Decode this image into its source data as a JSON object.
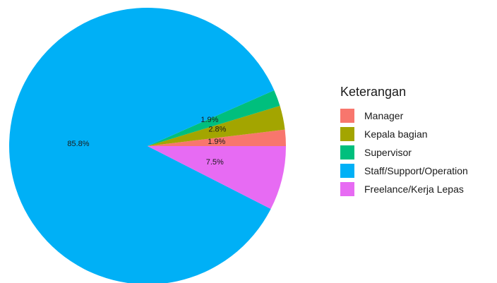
{
  "chart_data": {
    "type": "pie",
    "legend_title": "Keterangan",
    "legend_position": "right",
    "slices": [
      {
        "name": "Manager",
        "value": 1.9,
        "label": "1.9%",
        "color": "#F8766D"
      },
      {
        "name": "Kepala bagian",
        "value": 2.8,
        "label": "2.8%",
        "color": "#A3A500"
      },
      {
        "name": "Supervisor",
        "value": 1.9,
        "label": "1.9%",
        "color": "#00BF7D"
      },
      {
        "name": "Staff/Support/Operation",
        "value": 85.8,
        "label": "85.8%",
        "color": "#00B0F6"
      },
      {
        "name": "Freelance/Kerja Lepas",
        "value": 7.5,
        "label": "7.5%",
        "color": "#E76BF3"
      }
    ]
  }
}
